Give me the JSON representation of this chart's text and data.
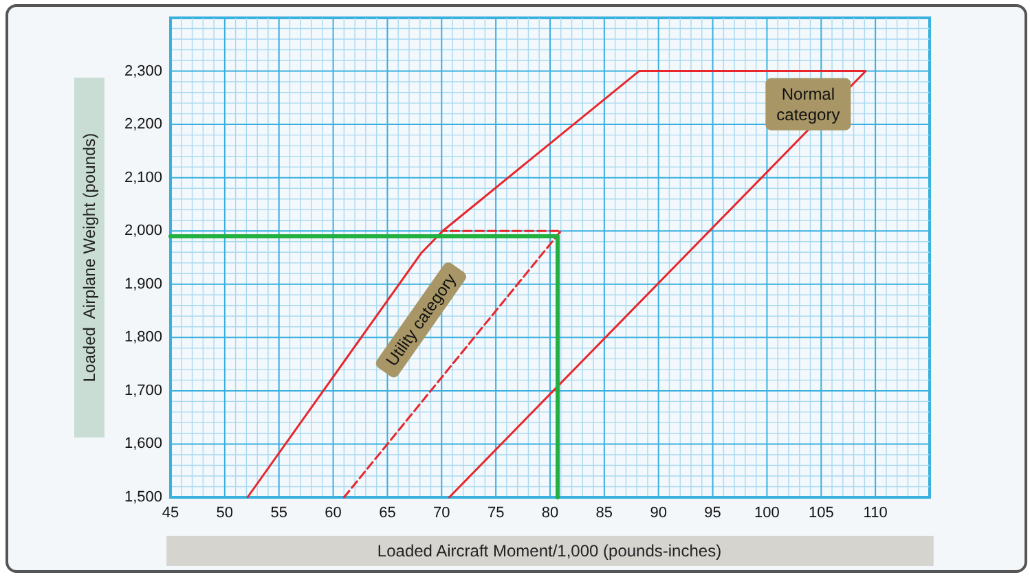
{
  "chart_data": {
    "type": "line",
    "xlabel": "Loaded Aircraft Moment/1,000 (pounds-inches)",
    "ylabel": "Loaded  Airplane Weight (pounds)",
    "xlim": [
      45,
      115
    ],
    "xticks": [
      45,
      {
        "value": 46,
        "label": null
      },
      {
        "value": 47,
        "label": null
      },
      {
        "value": 48,
        "label": null
      },
      {
        "value": 49,
        "label": null
      },
      50,
      {
        "value": 51,
        "label": null
      },
      {
        "value": 52,
        "label": null
      },
      {
        "value": 53,
        "label": null
      },
      {
        "value": 54,
        "label": null
      },
      55,
      {
        "value": 56,
        "label": null
      },
      {
        "value": 57,
        "label": null
      },
      {
        "value": 58,
        "label": null
      },
      {
        "value": 59,
        "label": null
      },
      60,
      {
        "value": 61,
        "label": null
      },
      {
        "value": 62,
        "label": null
      },
      {
        "value": 63,
        "label": null
      },
      {
        "value": 64,
        "label": null
      },
      65,
      {
        "value": 66,
        "label": null
      },
      {
        "value": 67,
        "label": null
      },
      {
        "value": 68,
        "label": null
      },
      {
        "value": 69,
        "label": null
      },
      70,
      {
        "value": 71,
        "label": null
      },
      {
        "value": 72,
        "label": null
      },
      {
        "value": 73,
        "label": null
      },
      {
        "value": 74,
        "label": null
      },
      75,
      {
        "value": 76,
        "label": null
      },
      {
        "value": 77,
        "label": null
      },
      {
        "value": 78,
        "label": null
      },
      {
        "value": 79,
        "label": null
      },
      80,
      {
        "value": 81,
        "label": null
      },
      {
        "value": 82,
        "label": null
      },
      {
        "value": 83,
        "label": null
      },
      {
        "value": 84,
        "label": null
      },
      85,
      {
        "value": 86,
        "label": null
      },
      {
        "value": 87,
        "label": null
      },
      {
        "value": 88,
        "label": null
      },
      {
        "value": 89,
        "label": null
      },
      90,
      {
        "value": 91,
        "label": null
      },
      {
        "value": 92,
        "label": null
      },
      {
        "value": 93,
        "label": null
      },
      {
        "value": 94,
        "label": null
      },
      95,
      {
        "value": 96,
        "label": null
      },
      {
        "value": 97,
        "label": null
      },
      {
        "value": 98,
        "label": null
      },
      {
        "value": 99,
        "label": null
      },
      100,
      {
        "value": 101,
        "label": null
      },
      {
        "value": 102,
        "label": null
      },
      {
        "value": 103,
        "label": null
      },
      {
        "value": 104,
        "label": null
      },
      105,
      {
        "value": 106,
        "label": null
      },
      {
        "value": 107,
        "label": null
      },
      {
        "value": 108,
        "label": null
      },
      {
        "value": 109,
        "label": null
      },
      110,
      {
        "value": 111,
        "label": null
      },
      {
        "value": 112,
        "label": null
      },
      {
        "value": 113,
        "label": null
      },
      {
        "value": 114,
        "label": null
      }
    ],
    "ylim": [
      1500,
      2400
    ],
    "yticks": [
      {
        "value": 1500,
        "label": "1,500"
      },
      {
        "value": 1520,
        "label": null
      },
      {
        "value": 1540,
        "label": null
      },
      {
        "value": 1560,
        "label": null
      },
      {
        "value": 1580,
        "label": null
      },
      {
        "value": 1600,
        "label": "1,600"
      },
      {
        "value": 1620,
        "label": null
      },
      {
        "value": 1640,
        "label": null
      },
      {
        "value": 1660,
        "label": null
      },
      {
        "value": 1680,
        "label": null
      },
      {
        "value": 1700,
        "label": "1,700"
      },
      {
        "value": 1720,
        "label": null
      },
      {
        "value": 1740,
        "label": null
      },
      {
        "value": 1760,
        "label": null
      },
      {
        "value": 1780,
        "label": null
      },
      {
        "value": 1800,
        "label": "1,800"
      },
      {
        "value": 1820,
        "label": null
      },
      {
        "value": 1840,
        "label": null
      },
      {
        "value": 1860,
        "label": null
      },
      {
        "value": 1880,
        "label": null
      },
      {
        "value": 1900,
        "label": "1,900"
      },
      {
        "value": 1920,
        "label": null
      },
      {
        "value": 1940,
        "label": null
      },
      {
        "value": 1960,
        "label": null
      },
      {
        "value": 1980,
        "label": null
      },
      {
        "value": 2000,
        "label": "2,000"
      },
      {
        "value": 2020,
        "label": null
      },
      {
        "value": 2040,
        "label": null
      },
      {
        "value": 2060,
        "label": null
      },
      {
        "value": 2080,
        "label": null
      },
      {
        "value": 2100,
        "label": "2,100"
      },
      {
        "value": 2120,
        "label": null
      },
      {
        "value": 2140,
        "label": null
      },
      {
        "value": 2160,
        "label": null
      },
      {
        "value": 2180,
        "label": null
      },
      {
        "value": 2200,
        "label": "2,200"
      },
      {
        "value": 2220,
        "label": null
      },
      {
        "value": 2240,
        "label": null
      },
      {
        "value": 2260,
        "label": null
      },
      {
        "value": 2280,
        "label": null
      },
      {
        "value": 2300,
        "label": "2,300"
      },
      {
        "value": 2320,
        "label": null
      },
      {
        "value": 2340,
        "label": null
      },
      {
        "value": 2360,
        "label": null
      },
      {
        "value": 2380,
        "label": null
      }
    ],
    "grid": true,
    "marker": "none",
    "series": [
      {
        "color": "#e8262c",
        "line_style": "solid",
        "x": [
          52.1,
          68.1,
          70.1,
          88.2,
          109.1,
          70.7
        ],
        "values": [
          1500,
          1958,
          2000,
          2300,
          2300,
          1500
        ]
      },
      {
        "color": "#e8262c",
        "line_style": "dashed",
        "x": [
          61.0,
          81.0,
          70.1
        ],
        "values": [
          1500,
          2000,
          2000
        ]
      },
      {
        "color": "#22b040",
        "line_style": "solid",
        "x": [
          45,
          80.7,
          80.7
        ],
        "values": [
          1990,
          1990,
          1500
        ]
      }
    ],
    "annotations": [
      "Normal category",
      "Utility category"
    ]
  }
}
